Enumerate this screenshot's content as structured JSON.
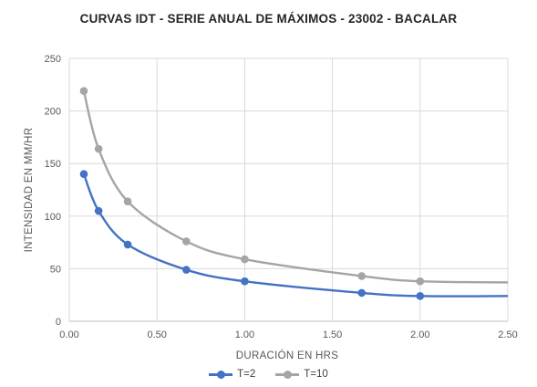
{
  "chart_data": {
    "type": "line",
    "title": "CURVAS IDT - SERIE ANUAL DE MÁXIMOS - 23002 - BACALAR",
    "xlabel": "DURACIÓN EN HRS",
    "ylabel": "INTENSIDAD EN MM/HR",
    "xlim": [
      0,
      2.5
    ],
    "ylim": [
      0,
      250
    ],
    "x_ticks": [
      "0.00",
      "0.50",
      "1.00",
      "1.50",
      "2.00",
      "2.50"
    ],
    "y_ticks": [
      "0",
      "50",
      "100",
      "150",
      "200",
      "250"
    ],
    "grid": true,
    "legend_position": "bottom",
    "series": [
      {
        "name": "T=2",
        "color": "#4472c4",
        "x": [
          0.083,
          0.167,
          0.333,
          0.667,
          1.0,
          1.667,
          2.0,
          2.5
        ],
        "y": [
          140,
          105,
          73,
          49,
          38,
          27,
          24,
          24
        ],
        "markers": [
          true,
          true,
          true,
          true,
          true,
          true,
          true,
          false
        ]
      },
      {
        "name": "T=10",
        "color": "#a5a5a5",
        "x": [
          0.083,
          0.167,
          0.333,
          0.667,
          1.0,
          1.667,
          2.0,
          2.5
        ],
        "y": [
          219,
          164,
          114,
          76,
          59,
          43,
          38,
          37
        ],
        "markers": [
          true,
          true,
          true,
          true,
          true,
          true,
          true,
          false
        ]
      }
    ]
  }
}
